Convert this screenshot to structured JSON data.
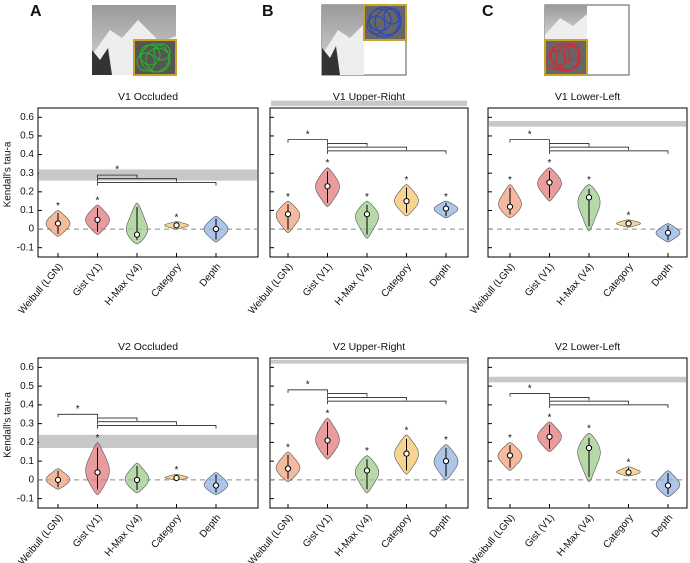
{
  "panel_labels": [
    "A",
    "B",
    "C"
  ],
  "chart_data": [
    {
      "type": "violin",
      "title": "V1 Occluded",
      "ylabel": "Kendall's tau-a",
      "show_ytick_labels": true,
      "categories": [
        "Weibull (LGN)",
        "Gist (V1)",
        "H-Max (V4)",
        "Category",
        "Depth"
      ],
      "colors": [
        "#f2a17c",
        "#e27b7c",
        "#9fcb8c",
        "#f6c66c",
        "#92b2e2"
      ],
      "medians": [
        0.03,
        0.05,
        -0.03,
        0.02,
        0.0
      ],
      "mins": [
        -0.04,
        -0.03,
        -0.08,
        0.0,
        -0.07
      ],
      "maxs": [
        0.1,
        0.13,
        0.14,
        0.04,
        0.07
      ],
      "starred": [
        true,
        true,
        false,
        true,
        false
      ],
      "star_label": "*",
      "brackets": [
        {
          "pair": [
            1,
            2
          ],
          "label": "*"
        },
        {
          "pair": [
            1,
            3
          ]
        },
        {
          "pair": [
            1,
            4
          ]
        }
      ],
      "ceiling": [
        0.26,
        0.32
      ],
      "ylim": [
        -0.15,
        0.65
      ],
      "yticks": [
        -0.1,
        0,
        0.1,
        0.2,
        0.3,
        0.4,
        0.5,
        0.6
      ]
    },
    {
      "type": "violin",
      "title": "V1 Upper-Right",
      "show_ytick_labels": false,
      "categories": [
        "Weibull (LGN)",
        "Gist (V1)",
        "H-Max (V4)",
        "Category",
        "Depth"
      ],
      "colors": [
        "#f2a17c",
        "#e27b7c",
        "#9fcb8c",
        "#f6c66c",
        "#92b2e2"
      ],
      "medians": [
        0.08,
        0.23,
        0.08,
        0.15,
        0.11
      ],
      "mins": [
        -0.02,
        0.12,
        -0.05,
        0.07,
        0.06
      ],
      "maxs": [
        0.15,
        0.33,
        0.15,
        0.24,
        0.15
      ],
      "starred": [
        true,
        true,
        true,
        true,
        true
      ],
      "star_label": "*",
      "brackets": [
        {
          "pair": [
            0,
            1
          ],
          "label": "*"
        },
        {
          "pair": [
            1,
            2
          ]
        },
        {
          "pair": [
            1,
            3
          ]
        },
        {
          "pair": [
            1,
            4
          ]
        }
      ],
      "ceiling": [
        0.66,
        0.69
      ],
      "ylim": [
        -0.15,
        0.65
      ],
      "yticks": [
        -0.1,
        0,
        0.1,
        0.2,
        0.3,
        0.4,
        0.5,
        0.6
      ]
    },
    {
      "type": "violin",
      "title": "V1 Lower-Left",
      "show_ytick_labels": false,
      "categories": [
        "Weibull (LGN)",
        "Gist (V1)",
        "H-Max (V4)",
        "Category",
        "Depth"
      ],
      "colors": [
        "#f2a17c",
        "#e27b7c",
        "#9fcb8c",
        "#f6c66c",
        "#92b2e2"
      ],
      "medians": [
        0.12,
        0.25,
        0.17,
        0.03,
        -0.02
      ],
      "mins": [
        0.06,
        0.15,
        -0.01,
        0.01,
        -0.07
      ],
      "maxs": [
        0.24,
        0.33,
        0.24,
        0.05,
        0.03
      ],
      "starred": [
        true,
        true,
        true,
        true,
        false
      ],
      "star_label": "*",
      "brackets": [
        {
          "pair": [
            0,
            1
          ],
          "label": "*"
        },
        {
          "pair": [
            1,
            2
          ]
        },
        {
          "pair": [
            1,
            3
          ]
        },
        {
          "pair": [
            1,
            4
          ]
        }
      ],
      "ceiling": [
        0.55,
        0.58
      ],
      "ylim": [
        -0.15,
        0.65
      ],
      "yticks": [
        -0.1,
        0,
        0.1,
        0.2,
        0.3,
        0.4,
        0.5,
        0.6
      ]
    },
    {
      "type": "violin",
      "title": "V2 Occluded",
      "ylabel": "Kendall's tau-a",
      "show_ytick_labels": true,
      "categories": [
        "Weibull (LGN)",
        "Gist (V1)",
        "H-Max (V4)",
        "Category",
        "Depth"
      ],
      "colors": [
        "#f2a17c",
        "#e27b7c",
        "#9fcb8c",
        "#f6c66c",
        "#92b2e2"
      ],
      "medians": [
        0.0,
        0.04,
        0.0,
        0.01,
        -0.03
      ],
      "mins": [
        -0.05,
        -0.08,
        -0.07,
        0.0,
        -0.08
      ],
      "maxs": [
        0.06,
        0.2,
        0.09,
        0.03,
        0.04
      ],
      "starred": [
        false,
        true,
        false,
        true,
        false
      ],
      "star_label": "*",
      "brackets": [
        {
          "pair": [
            0,
            1
          ],
          "label": "*"
        },
        {
          "pair": [
            1,
            2
          ]
        },
        {
          "pair": [
            1,
            3
          ]
        },
        {
          "pair": [
            1,
            4
          ]
        }
      ],
      "ceiling": [
        0.17,
        0.24
      ],
      "ylim": [
        -0.15,
        0.65
      ],
      "yticks": [
        -0.1,
        0,
        0.1,
        0.2,
        0.3,
        0.4,
        0.5,
        0.6
      ]
    },
    {
      "type": "violin",
      "title": "V2 Upper-Right",
      "show_ytick_labels": false,
      "categories": [
        "Weibull (LGN)",
        "Gist (V1)",
        "H-Max (V4)",
        "Category",
        "Depth"
      ],
      "colors": [
        "#f2a17c",
        "#e27b7c",
        "#9fcb8c",
        "#f6c66c",
        "#92b2e2"
      ],
      "medians": [
        0.06,
        0.21,
        0.05,
        0.14,
        0.1
      ],
      "mins": [
        -0.01,
        0.11,
        -0.07,
        0.03,
        0.0
      ],
      "maxs": [
        0.15,
        0.33,
        0.13,
        0.24,
        0.19
      ],
      "starred": [
        true,
        true,
        true,
        true,
        true
      ],
      "star_label": "*",
      "brackets": [
        {
          "pair": [
            0,
            1
          ],
          "label": "*"
        },
        {
          "pair": [
            1,
            2
          ]
        },
        {
          "pair": [
            1,
            3
          ]
        },
        {
          "pair": [
            1,
            4
          ]
        }
      ],
      "ceiling": [
        0.62,
        0.64
      ],
      "ylim": [
        -0.15,
        0.65
      ],
      "yticks": [
        -0.1,
        0,
        0.1,
        0.2,
        0.3,
        0.4,
        0.5,
        0.6
      ]
    },
    {
      "type": "violin",
      "title": "V2 Lower-Left",
      "show_ytick_labels": false,
      "categories": [
        "Weibull (LGN)",
        "Gist (V1)",
        "H-Max (V4)",
        "Category",
        "Depth"
      ],
      "colors": [
        "#f2a17c",
        "#e27b7c",
        "#9fcb8c",
        "#f6c66c",
        "#92b2e2"
      ],
      "medians": [
        0.13,
        0.23,
        0.17,
        0.04,
        -0.03
      ],
      "mins": [
        0.05,
        0.15,
        -0.01,
        0.02,
        -0.09
      ],
      "maxs": [
        0.2,
        0.31,
        0.25,
        0.07,
        0.05
      ],
      "starred": [
        true,
        true,
        true,
        true,
        false
      ],
      "star_label": "*",
      "brackets": [
        {
          "pair": [
            0,
            1
          ],
          "label": "*"
        },
        {
          "pair": [
            1,
            2
          ]
        },
        {
          "pair": [
            1,
            3
          ]
        },
        {
          "pair": [
            1,
            4
          ]
        }
      ],
      "ceiling": [
        0.52,
        0.55
      ],
      "ylim": [
        -0.15,
        0.65
      ],
      "yticks": [
        -0.1,
        0,
        0.1,
        0.2,
        0.3,
        0.4,
        0.5,
        0.6
      ]
    }
  ]
}
